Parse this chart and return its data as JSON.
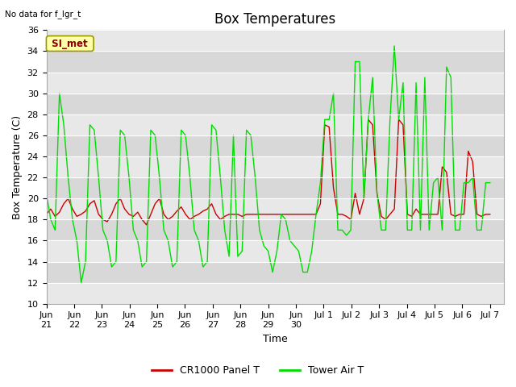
{
  "title": "Box Temperatures",
  "xlabel": "Time",
  "ylabel": "Box Temperature (C)",
  "ylim": [
    10,
    36
  ],
  "no_data_text": "No data for f_lgr_t",
  "legend_label": "SI_met",
  "line1_label": "CR1000 Panel T",
  "line2_label": "Tower Air T",
  "line1_color": "#cc0000",
  "line2_color": "#00dd00",
  "background_color": "#ffffff",
  "plot_bg_color": "#d8d8d8",
  "stripe_color": "#e8e8e8",
  "title_fontsize": 12,
  "axis_fontsize": 9,
  "tick_fontsize": 8,
  "legend_label_color": "#880000",
  "legend_label_bg": "#ffffaa",
  "xtick_labels": [
    "Jun 21",
    "Jun 22",
    "Jun 23",
    "Jun 24",
    "Jun 25",
    "Jun 26",
    "Jun 27",
    "Jun 28",
    "Jun 29",
    "Jun 30",
    "Jul 1",
    "Jul 2",
    "Jul 3",
    "Jul 4",
    "Jul 5",
    "Jul 6",
    "Jul 7"
  ],
  "red_y": [
    18.5,
    19.0,
    18.3,
    18.7,
    19.5,
    20.0,
    19.0,
    18.3,
    18.5,
    18.8,
    19.5,
    19.8,
    18.5,
    18.0,
    17.8,
    18.5,
    19.5,
    20.0,
    19.0,
    18.5,
    18.3,
    18.7,
    18.0,
    17.5,
    18.5,
    19.5,
    20.0,
    18.5,
    18.0,
    18.3,
    18.8,
    19.2,
    18.5,
    18.0,
    18.3,
    18.5,
    18.8,
    19.0,
    19.5,
    18.5,
    18.0,
    18.3,
    18.5,
    18.5,
    18.5,
    18.3,
    18.5,
    18.5,
    18.5,
    18.5,
    18.5,
    18.5,
    18.5,
    18.5,
    18.5,
    18.5,
    18.5,
    18.5,
    18.5,
    18.5,
    18.5,
    18.5,
    18.5,
    19.5,
    27.0,
    26.8,
    21.0,
    18.5,
    18.5,
    18.3,
    18.0,
    20.5,
    18.5,
    20.0,
    27.5,
    27.0,
    20.5,
    18.3,
    18.0,
    18.5,
    19.0,
    27.5,
    27.0,
    18.5,
    18.3,
    19.0,
    18.5,
    18.5,
    18.5,
    18.5,
    18.5,
    23.0,
    22.5,
    18.5,
    18.3,
    18.5,
    18.5,
    24.5,
    23.5,
    18.5,
    18.3,
    18.5,
    18.5
  ],
  "green_y": [
    20.5,
    18.0,
    17.0,
    30.0,
    27.0,
    22.0,
    18.0,
    16.0,
    12.0,
    14.0,
    27.0,
    26.5,
    22.0,
    17.0,
    16.0,
    13.5,
    14.0,
    26.5,
    26.0,
    22.0,
    17.0,
    16.0,
    13.5,
    14.0,
    26.5,
    26.0,
    22.0,
    17.0,
    16.0,
    13.5,
    14.0,
    26.5,
    26.0,
    22.0,
    17.0,
    16.0,
    13.5,
    14.0,
    27.0,
    26.5,
    22.0,
    17.0,
    14.5,
    26.0,
    14.5,
    15.0,
    26.5,
    26.0,
    22.0,
    17.0,
    15.5,
    15.0,
    13.0,
    15.0,
    18.5,
    18.0,
    16.0,
    15.5,
    15.0,
    13.0,
    13.0,
    15.0,
    18.5,
    21.5,
    27.5,
    27.5,
    30.0,
    17.0,
    17.0,
    16.5,
    17.0,
    33.0,
    33.0,
    20.0,
    27.5,
    31.5,
    20.5,
    17.0,
    17.0,
    27.5,
    34.5,
    27.5,
    31.0,
    17.0,
    17.0,
    31.0,
    17.0,
    31.5,
    17.0,
    21.5,
    22.0,
    17.0,
    32.5,
    31.5,
    17.0,
    17.0,
    21.5,
    21.5,
    22.0,
    17.0,
    17.0,
    21.5,
    21.5
  ]
}
